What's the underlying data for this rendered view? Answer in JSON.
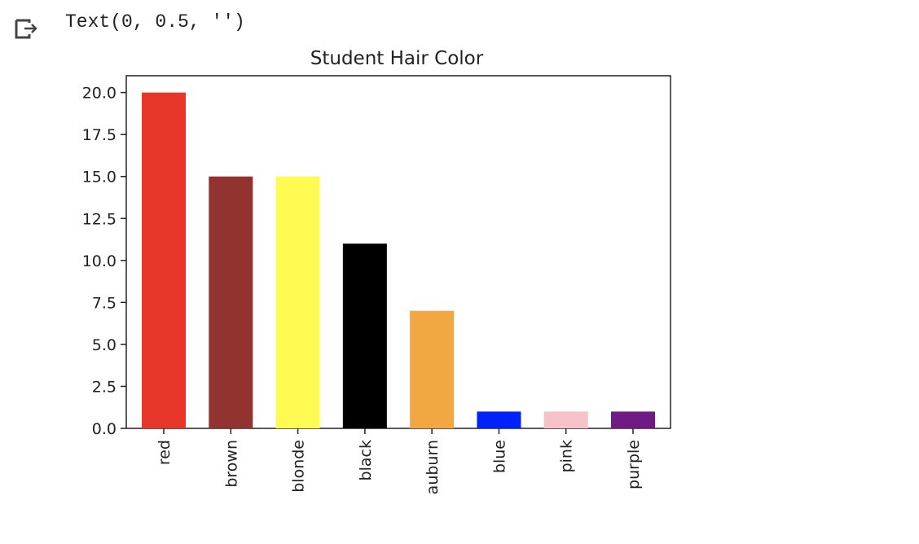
{
  "cell_output": {
    "text": "Text(0, 0.5, '')",
    "icon": "output-arrow-icon"
  },
  "chart_data": {
    "type": "bar",
    "title": "Student Hair Color",
    "xlabel": "",
    "ylabel": "",
    "categories": [
      "red",
      "brown",
      "blonde",
      "black",
      "auburn",
      "blue",
      "pink",
      "purple"
    ],
    "values": [
      20,
      15,
      15,
      11,
      7,
      1,
      1,
      1
    ],
    "colors": [
      "#e8372a",
      "#933330",
      "#fffb52",
      "#000000",
      "#f2a742",
      "#0022ff",
      "#f5c2ca",
      "#6f1a85"
    ],
    "ylim": [
      0,
      21
    ],
    "yticks": [
      0.0,
      2.5,
      5.0,
      7.5,
      10.0,
      12.5,
      15.0,
      17.5,
      20.0
    ],
    "ytick_labels": [
      "0.0",
      "2.5",
      "5.0",
      "7.5",
      "10.0",
      "12.5",
      "15.0",
      "17.5",
      "20.0"
    ],
    "grid": false,
    "legend": "none",
    "xtick_rotation": "vertical"
  }
}
